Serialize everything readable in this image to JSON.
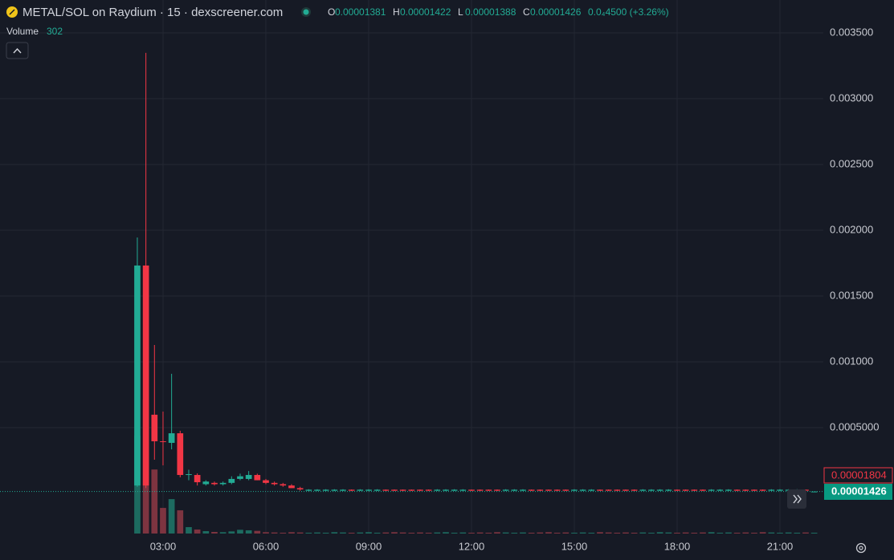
{
  "header": {
    "title": "METAL/SOL on Raydium · 15 · dexscreener.com",
    "ohlc": [
      {
        "label": "O",
        "value": "0.00001381"
      },
      {
        "label": "H",
        "value": "0.00001422"
      },
      {
        "label": "L",
        "value": "0.00001388"
      },
      {
        "label": "C",
        "value": "0.00001426"
      }
    ],
    "change": "0.0₄4500 (+3.26%)",
    "volume_label": "Volume",
    "volume_value": "302"
  },
  "price_labels": {
    "reference": "0.00001804",
    "last": "0.00001426"
  },
  "chart_data": {
    "type": "candlestick",
    "up_color": "#22ab94",
    "down_color": "#f23645",
    "volume_up_color": "#1d6b60",
    "volume_down_color": "#7d3440",
    "grid": true,
    "xlim": [
      -1.757,
      22.266
    ],
    "xticks": [
      {
        "value": 3,
        "label": "03:00"
      },
      {
        "value": 6,
        "label": "06:00"
      },
      {
        "value": 9,
        "label": "09:00"
      },
      {
        "value": 12,
        "label": "12:00"
      },
      {
        "value": 15,
        "label": "15:00"
      },
      {
        "value": 18,
        "label": "18:00"
      },
      {
        "value": 21,
        "label": "21:00"
      }
    ],
    "ylim": [
      -0.000305,
      0.00375
    ],
    "yticks": [
      {
        "value": 0.0005,
        "label": "0.0005000"
      },
      {
        "value": 0.001,
        "label": "0.001000"
      },
      {
        "value": 0.0015,
        "label": "0.001500"
      },
      {
        "value": 0.002,
        "label": "0.002000"
      },
      {
        "value": 0.0025,
        "label": "0.002500"
      },
      {
        "value": 0.003,
        "label": "0.003000"
      },
      {
        "value": 0.0035,
        "label": "0.003500"
      }
    ],
    "y2lim": [
      0,
      200000
    ],
    "x": [
      2.25,
      2.5,
      2.75,
      3,
      3.25,
      3.5,
      3.75,
      4,
      4.25,
      4.5,
      4.75,
      5,
      5.25,
      5.5,
      5.75,
      6,
      6.25,
      6.5,
      6.75,
      7,
      7.25,
      7.5,
      7.75,
      8,
      8.25,
      8.5,
      8.75,
      9,
      9.25,
      9.5,
      9.75,
      10,
      10.25,
      10.5,
      10.75,
      11,
      11.25,
      11.5,
      11.75,
      12,
      12.25,
      12.5,
      12.75,
      13,
      13.25,
      13.5,
      13.75,
      14,
      14.25,
      14.5,
      14.75,
      15,
      15.25,
      15.5,
      15.75,
      16,
      16.25,
      16.5,
      16.75,
      17,
      17.25,
      17.5,
      17.75,
      18,
      18.25,
      18.5,
      18.75,
      19,
      19.25,
      19.5,
      19.75,
      20,
      20.25,
      20.5,
      20.75,
      21,
      21.25,
      21.5,
      21.75,
      22
    ],
    "open": [
      6e-05,
      0.001732,
      0.000598,
      0.000396,
      0.000384,
      0.000457,
      0.00014,
      0.00014,
      7e-05,
      8e-05,
      7e-05,
      8e-05,
      0.00011,
      0.00011,
      0.00014,
      0.0001,
      8e-05,
      7e-05,
      6e-05,
      4e-05,
      2e-05,
      2e-05,
      2e-05,
      2e-05,
      2e-05,
      2.8e-05,
      2e-05,
      2e-05,
      2e-05,
      2.8e-05,
      2.8e-05,
      2.8e-05,
      2.8e-05,
      2.8e-05,
      2.8e-05,
      2e-05,
      2e-05,
      2e-05,
      2e-05,
      2.8e-05,
      2.8e-05,
      2.8e-05,
      2.8e-05,
      2e-05,
      2e-05,
      2e-05,
      2.8e-05,
      2.8e-05,
      2.8e-05,
      2.8e-05,
      2.8e-05,
      2e-05,
      2e-05,
      2e-05,
      2.8e-05,
      2.8e-05,
      2.8e-05,
      2.8e-05,
      2.8e-05,
      2e-05,
      2e-05,
      2e-05,
      2e-05,
      2.8e-05,
      2.8e-05,
      2.8e-05,
      2.8e-05,
      2e-05,
      2e-05,
      2e-05,
      2.8e-05,
      2.8e-05,
      2.8e-05,
      2.8e-05,
      2e-05,
      2e-05,
      2e-05,
      2e-05,
      2.8e-05,
      1.381e-05
    ],
    "high": [
      0.001945,
      0.003348,
      0.001128,
      0.000622,
      0.000909,
      0.000476,
      0.00018,
      0.000152,
      0.0001,
      9e-05,
      9e-05,
      0.00013,
      0.00015,
      0.00017,
      0.00015,
      0.00011,
      9e-05,
      8e-05,
      7e-05,
      5e-05,
      3.2e-05,
      3.2e-05,
      3.2e-05,
      3.2e-05,
      3.2e-05,
      3e-05,
      3.2e-05,
      3.2e-05,
      3.2e-05,
      3e-05,
      3e-05,
      3e-05,
      3e-05,
      3e-05,
      3e-05,
      3.2e-05,
      3.2e-05,
      3.2e-05,
      3.2e-05,
      3e-05,
      3e-05,
      3e-05,
      3e-05,
      3.2e-05,
      3.2e-05,
      3.2e-05,
      3e-05,
      3e-05,
      3e-05,
      3e-05,
      3e-05,
      3.2e-05,
      3.2e-05,
      3.2e-05,
      3e-05,
      3e-05,
      3e-05,
      3e-05,
      3e-05,
      3.2e-05,
      3.2e-05,
      3.2e-05,
      3.2e-05,
      3e-05,
      3e-05,
      3e-05,
      3e-05,
      3.2e-05,
      3.2e-05,
      3.2e-05,
      3e-05,
      3e-05,
      3e-05,
      3e-05,
      3.2e-05,
      3.2e-05,
      3.2e-05,
      3.2e-05,
      3e-05,
      1.422e-05
    ],
    "low": [
      5e-05,
      4e-05,
      0.000256,
      0.000213,
      0.000335,
      0.000122,
      0.0001,
      6e-05,
      6e-05,
      6e-05,
      6e-05,
      7e-05,
      0.0001,
      0.0001,
      0.0001,
      7e-05,
      6e-05,
      5e-05,
      4e-05,
      2e-05,
      1.8e-05,
      1.8e-05,
      1.8e-05,
      1.8e-05,
      1.8e-05,
      1.8e-05,
      1.8e-05,
      1.8e-05,
      1.8e-05,
      1.8e-05,
      1.8e-05,
      1.8e-05,
      1.8e-05,
      1.8e-05,
      1.8e-05,
      1.8e-05,
      1.8e-05,
      1.8e-05,
      1.8e-05,
      1.8e-05,
      1.8e-05,
      1.8e-05,
      1.8e-05,
      1.8e-05,
      1.8e-05,
      1.8e-05,
      1.8e-05,
      1.8e-05,
      1.8e-05,
      1.8e-05,
      1.8e-05,
      1.8e-05,
      1.8e-05,
      1.8e-05,
      1.8e-05,
      1.8e-05,
      1.8e-05,
      1.8e-05,
      1.8e-05,
      1.8e-05,
      1.8e-05,
      1.8e-05,
      1.8e-05,
      1.8e-05,
      1.8e-05,
      1.8e-05,
      1.8e-05,
      1.8e-05,
      1.8e-05,
      1.8e-05,
      1.8e-05,
      1.8e-05,
      1.8e-05,
      1.8e-05,
      1.8e-05,
      1.8e-05,
      1.8e-05,
      1.8e-05,
      1.8e-05,
      1.388e-05
    ],
    "close": [
      0.001732,
      6e-05,
      0.000396,
      0.00039,
      0.000457,
      0.00014,
      0.000146,
      8.5e-05,
      9e-05,
      7e-05,
      8e-05,
      0.00011,
      0.00013,
      0.00014,
      0.0001,
      8e-05,
      7e-05,
      6e-05,
      4e-05,
      3e-05,
      2.8e-05,
      2.8e-05,
      2.8e-05,
      2.8e-05,
      2.8e-05,
      2e-05,
      2.8e-05,
      2.8e-05,
      2.8e-05,
      2e-05,
      2e-05,
      2e-05,
      2e-05,
      2e-05,
      2e-05,
      2.8e-05,
      2.8e-05,
      2.8e-05,
      2.8e-05,
      2e-05,
      2e-05,
      2e-05,
      2e-05,
      2.8e-05,
      2.8e-05,
      2.8e-05,
      2e-05,
      2e-05,
      2e-05,
      2e-05,
      2e-05,
      2.8e-05,
      2.8e-05,
      2.8e-05,
      2e-05,
      2e-05,
      2e-05,
      2e-05,
      2e-05,
      2.8e-05,
      2.8e-05,
      2.8e-05,
      2.8e-05,
      2e-05,
      2e-05,
      2e-05,
      2e-05,
      2.8e-05,
      2.8e-05,
      2.8e-05,
      2e-05,
      2e-05,
      2e-05,
      2e-05,
      2.8e-05,
      2.8e-05,
      2.8e-05,
      2.8e-05,
      2e-05,
      1.426e-05
    ],
    "volume": [
      36700,
      50200,
      24000,
      9600,
      12900,
      8700,
      2400,
      1500,
      900,
      600,
      500,
      800,
      1400,
      1200,
      1000,
      500,
      400,
      300,
      500,
      400,
      300,
      400,
      300,
      500,
      400,
      300,
      400,
      500,
      300,
      400,
      500,
      400,
      300,
      400,
      300,
      400,
      500,
      300,
      400,
      300,
      400,
      300,
      500,
      400,
      300,
      400,
      300,
      400,
      500,
      300,
      400,
      300,
      400,
      300,
      500,
      400,
      300,
      400,
      300,
      400,
      300,
      500,
      400,
      300,
      400,
      300,
      400,
      500,
      300,
      400,
      300,
      400,
      300,
      500,
      400,
      300,
      400,
      300,
      400,
      302
    ]
  }
}
